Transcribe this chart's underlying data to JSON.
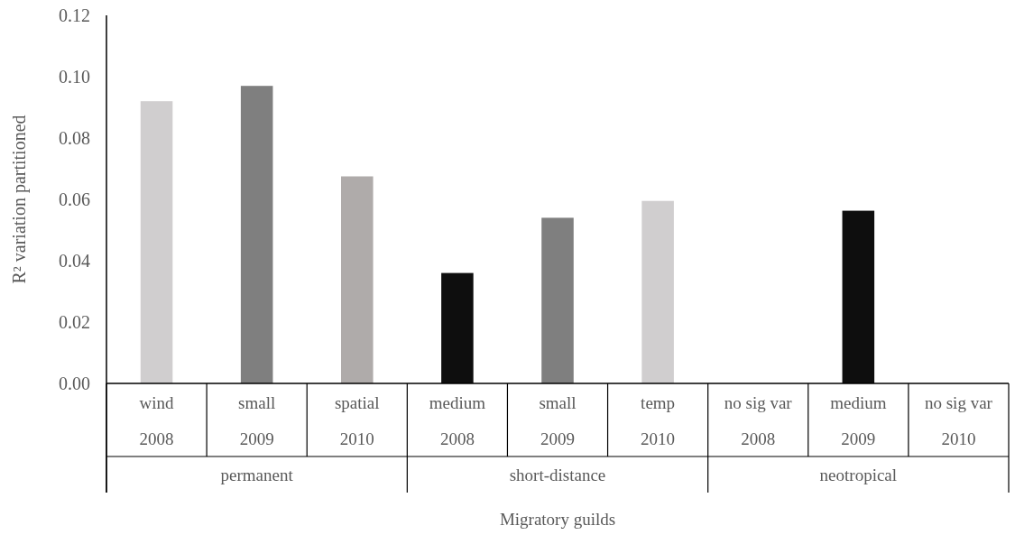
{
  "chart_data": {
    "type": "bar",
    "ylabel": "R² variation partitioned",
    "xlabel": "Migratory guilds",
    "categories": [
      "wind\n2008",
      "small\n2009",
      "spatial\n2010",
      "medium\n2008",
      "small\n2009",
      "temp\n2010",
      "no sig var\n2008",
      "medium\n2009",
      "no sig var\n2010"
    ],
    "values": [
      0.092,
      0.097,
      0.0675,
      0.036,
      0.054,
      0.0595,
      null,
      0.0563,
      null
    ],
    "colors": [
      "#d0cecf",
      "#7f7f7f",
      "#afabaa",
      "#0e0e0e",
      "#7f7f7f",
      "#d0cecf",
      null,
      "#0e0e0e",
      null
    ],
    "annotations": [
      "permanent",
      "short-distance",
      "neotropical"
    ],
    "ylim": [
      0,
      0.12
    ],
    "yticks": [
      {
        "value": 0,
        "label": "0.00"
      },
      {
        "value": 0.02,
        "label": "0.02"
      },
      {
        "value": 0.04,
        "label": "0.04"
      },
      {
        "value": 0.06,
        "label": "0.06"
      },
      {
        "value": 0.08,
        "label": "0.08"
      },
      {
        "value": 0.1,
        "label": "0.10"
      },
      {
        "value": 0.12,
        "label": "0.12"
      }
    ],
    "grid": false
  }
}
